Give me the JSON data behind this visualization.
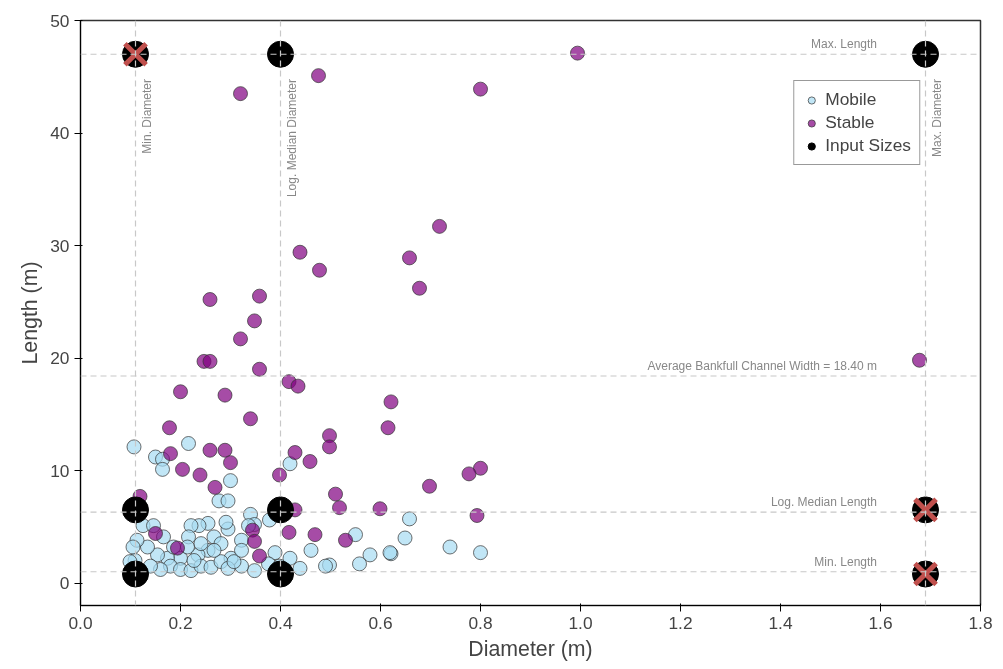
{
  "chart_data": {
    "type": "scatter",
    "xlabel": "Diameter (m)",
    "ylabel": "Length (m)",
    "xlim": [
      0,
      1.8
    ],
    "xticks": [
      {
        "value": 0,
        "label": "0.0"
      },
      0.2,
      0.4,
      0.6,
      0.8,
      {
        "value": 1,
        "label": "1.0"
      },
      1.2,
      1.4,
      1.6,
      1.8
    ],
    "ylim": [
      -2,
      50
    ],
    "yticks": [
      0,
      10,
      20,
      30,
      40,
      50
    ],
    "grid": false,
    "legend": "top right",
    "ref_lines": [
      {
        "axis": "x",
        "value": 0.11,
        "label": "Min. Diameter",
        "color": "#c8c8c8",
        "line_style": "dashed"
      },
      {
        "axis": "x",
        "value": 0.4,
        "label": "Log. Median Diameter",
        "color": "#c8c8c8",
        "line_style": "dashed"
      },
      {
        "axis": "x",
        "value": 1.69,
        "label": "Max. Diameter",
        "color": "#c8c8c8",
        "line_style": "dashed"
      },
      {
        "axis": "y",
        "value": 47,
        "label": "Max. Length",
        "color": "#c8c8c8",
        "line_style": "dashed"
      },
      {
        "axis": "y",
        "value": 18.4,
        "label": "Average Bankfull Channel Width = 18.40 m",
        "color": "#c8c8c8",
        "line_style": "dashed"
      },
      {
        "axis": "y",
        "value": 6.3,
        "label": "Log. Median Length",
        "color": "#c8c8c8",
        "line_style": "dashed"
      },
      {
        "axis": "y",
        "value": 1.0,
        "label": "Min. Length",
        "color": "#c8c8c8",
        "line_style": "dashed"
      }
    ],
    "series": [
      {
        "name": "Mobile",
        "color": "#a6dcf2",
        "marker": "circle",
        "x": [
          0.658,
          0.649,
          0.621,
          0.739,
          0.8,
          0.107,
          0.216,
          0.15,
          0.164,
          0.164,
          0.3,
          0.277,
          0.295,
          0.419,
          0.55,
          0.461,
          0.579,
          0.619,
          0.558,
          0.498,
          0.49,
          0.439,
          0.419,
          0.378,
          0.34,
          0.348,
          0.348,
          0.389,
          0.322,
          0.322,
          0.301,
          0.295,
          0.291,
          0.255,
          0.237,
          0.221,
          0.216,
          0.267,
          0.281,
          0.255,
          0.235,
          0.2,
          0.174,
          0.154,
          0.134,
          0.113,
          0.109,
          0.125,
          0.146,
          0.166,
          0.18,
          0.2,
          0.221,
          0.241,
          0.261,
          0.281,
          0.295,
          0.307,
          0.16,
          0.14,
          0.186,
          0.214,
          0.241,
          0.267,
          0.227,
          0.322,
          0.376,
          0.398,
          0.336,
          0.105,
          0.099
        ],
        "values": [
          5.7,
          4.0,
          2.6,
          3.2,
          2.7,
          12.1,
          12.4,
          11.2,
          11.0,
          10.1,
          9.1,
          7.3,
          7.3,
          10.6,
          4.3,
          2.9,
          2.5,
          2.7,
          1.7,
          1.6,
          1.5,
          1.3,
          2.2,
          5.6,
          6.1,
          5.2,
          1.1,
          2.7,
          1.5,
          3.8,
          2.2,
          4.8,
          5.4,
          5.3,
          5.1,
          5.1,
          4.1,
          4.1,
          3.5,
          2.9,
          2.5,
          2.2,
          2.2,
          2.5,
          3.2,
          3.8,
          2.0,
          5.1,
          5.1,
          4.1,
          1.5,
          1.2,
          1.1,
          1.5,
          1.4,
          1.9,
          1.3,
          1.9,
          1.2,
          1.5,
          3.2,
          3.2,
          3.5,
          2.9,
          2.0,
          2.9,
          1.7,
          1.5,
          5.1,
          3.2,
          1.9
        ]
      },
      {
        "name": "Stable",
        "color": "#800080",
        "marker": "circle",
        "x": [
          0.994,
          0.8,
          0.718,
          0.658,
          0.678,
          1.678,
          0.621,
          0.615,
          0.8,
          0.777,
          0.698,
          0.793,
          0.476,
          0.32,
          0.439,
          0.478,
          0.259,
          0.358,
          0.348,
          0.32,
          0.247,
          0.259,
          0.358,
          0.417,
          0.435,
          0.2,
          0.289,
          0.34,
          0.178,
          0.498,
          0.498,
          0.18,
          0.259,
          0.289,
          0.3,
          0.429,
          0.459,
          0.204,
          0.239,
          0.398,
          0.269,
          0.119,
          0.51,
          0.518,
          0.599,
          0.429,
          0.15,
          0.344,
          0.417,
          0.469,
          0.53,
          0.348,
          0.194,
          0.358
        ],
        "values": [
          47.1,
          43.9,
          31.7,
          28.9,
          26.2,
          19.8,
          16.1,
          13.8,
          10.2,
          9.7,
          8.6,
          6.0,
          45.1,
          43.5,
          29.4,
          27.8,
          25.2,
          25.5,
          23.3,
          21.7,
          19.7,
          19.7,
          19.0,
          17.9,
          17.5,
          17.0,
          16.7,
          14.6,
          13.8,
          13.1,
          12.1,
          11.5,
          11.8,
          11.8,
          10.7,
          11.6,
          10.8,
          10.1,
          9.6,
          9.6,
          8.5,
          7.7,
          7.9,
          6.7,
          6.6,
          6.5,
          4.4,
          4.7,
          4.5,
          4.3,
          3.8,
          3.7,
          3.1,
          2.4
        ]
      },
      {
        "name": "Input Sizes",
        "color": "#000000",
        "marker": "circle",
        "x": [
          0.11,
          0.4,
          1.69,
          0.11,
          0.4,
          1.69,
          0.11,
          0.4,
          1.69
        ],
        "values": [
          47,
          47,
          47,
          6.5,
          6.5,
          6.5,
          0.8,
          0.8,
          0.8
        ]
      },
      {
        "color": "#c0504d",
        "marker": "cross",
        "x": [
          0.11,
          1.69,
          1.69
        ],
        "values": [
          47,
          6.5,
          0.8
        ]
      }
    ]
  }
}
